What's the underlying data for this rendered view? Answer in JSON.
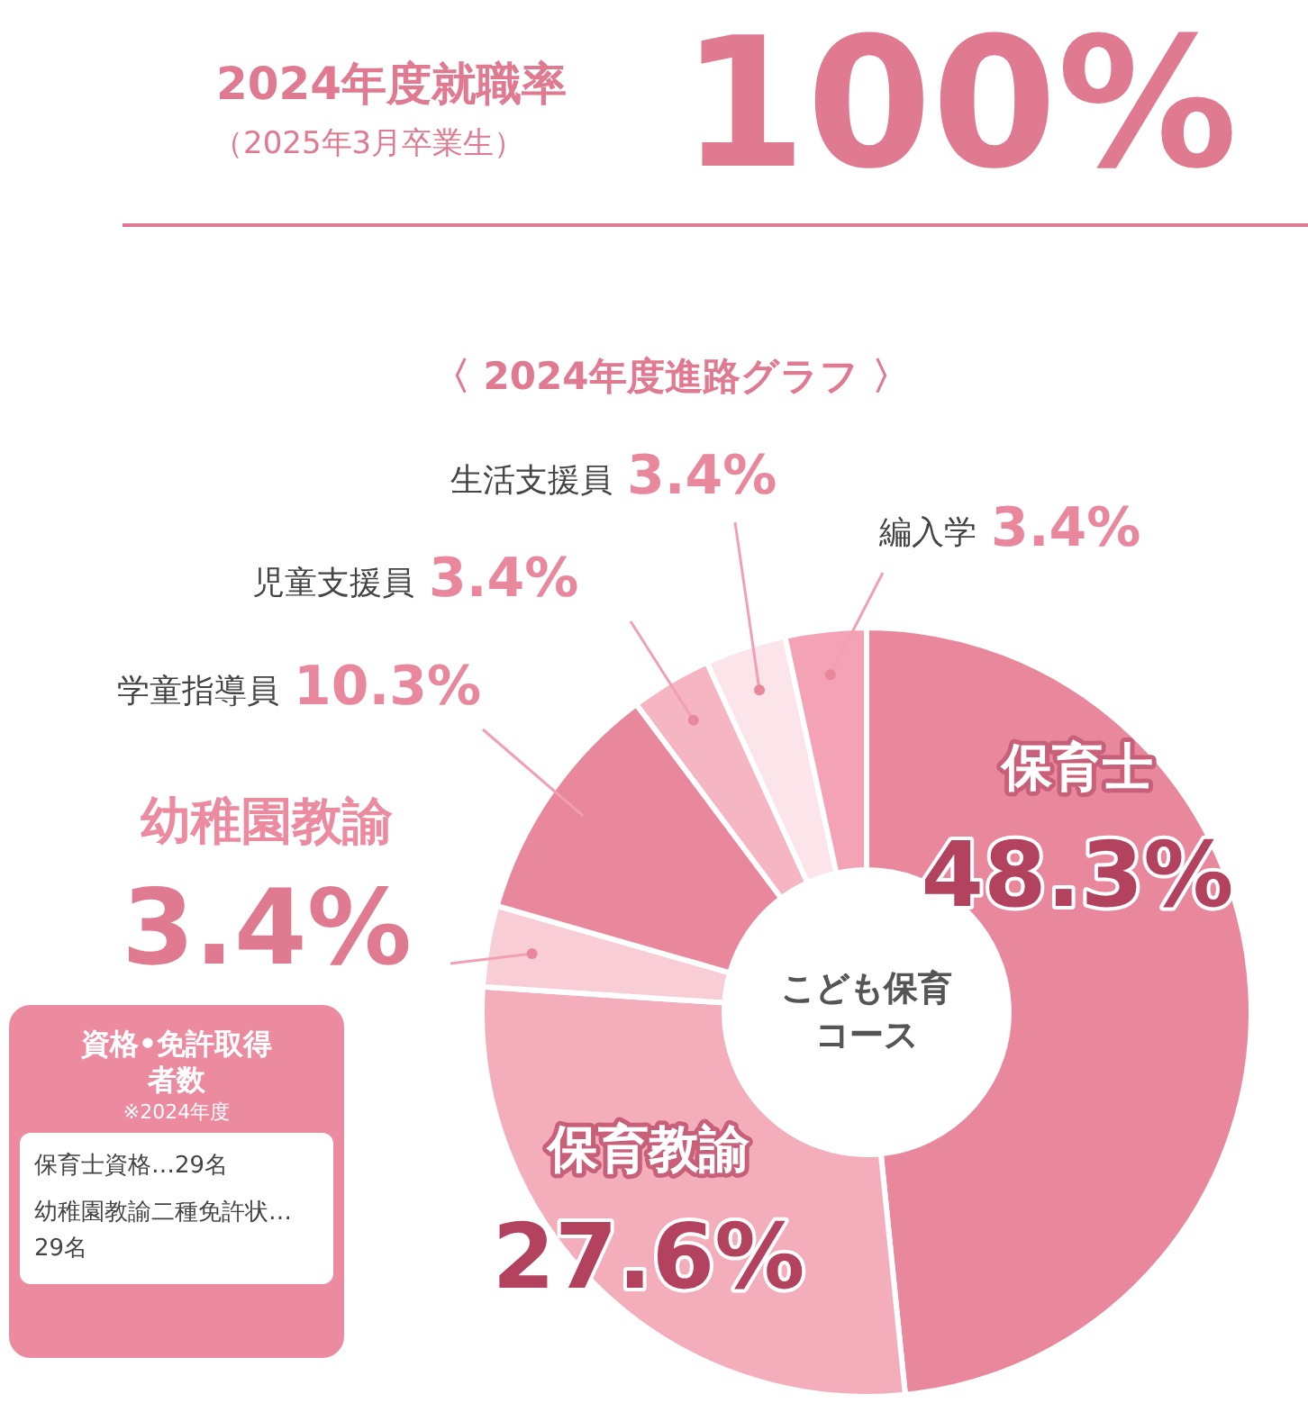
{
  "chart_data": {
    "type": "donut",
    "title": "2024年度就職率",
    "subtitle": "（2025年3月卒業生）",
    "categories": [
      "保育士",
      "保育教諭",
      "幼稚園教諭",
      "学童指導員",
      "児童支援員",
      "生活支援員",
      "編入学"
    ],
    "values": [
      48.3,
      27.6,
      3.4,
      10.3,
      3.4,
      3.4,
      3.4
    ],
    "value_labels": [
      "48.3%",
      "27.6%",
      "3.4%",
      "10.3%",
      "3.4%",
      "3.4%",
      "3.4%"
    ],
    "colors": [
      "#e9879d",
      "#f3adbb",
      "#f8cdd6",
      "#e9879d",
      "#f5b5c3",
      "#fbe4ea",
      "#f4a3b6"
    ],
    "legend": false,
    "annotations": [
      "100%",
      "〈 2024年度進路グラフ 〉",
      "こども保育コース",
      "資格•免許取得者数",
      "※2024年度",
      "保育士資格…29名",
      "幼稚園教諭二種免許状…29名"
    ]
  }
}
